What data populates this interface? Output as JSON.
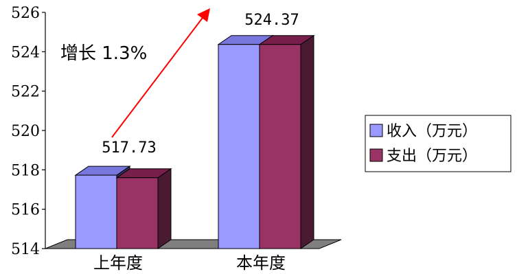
{
  "colors": {
    "series_front": [
      "#9999ff",
      "#993366"
    ],
    "series_top": [
      "#7777dd",
      "#771f4a"
    ],
    "series_side": [
      "#333366",
      "#4a1a33"
    ],
    "floor": "#7f7f7f",
    "arrow": "#ff0000"
  },
  "annotation": {
    "text": "增长 1.3%"
  },
  "chart_data": {
    "type": "bar",
    "categories": [
      "上年度",
      "本年度"
    ],
    "series": [
      {
        "name": "收入（万元）",
        "values": [
          517.73,
          524.37
        ]
      },
      {
        "name": "支出（万元）",
        "values": [
          517.6,
          524.37
        ]
      }
    ],
    "data_labels": [
      "517.73",
      "524.37"
    ],
    "yticks": [
      "514",
      "516",
      "518",
      "520",
      "522",
      "524",
      "526"
    ],
    "ylim": [
      514,
      526
    ],
    "grid": false,
    "legend_position": "right"
  }
}
